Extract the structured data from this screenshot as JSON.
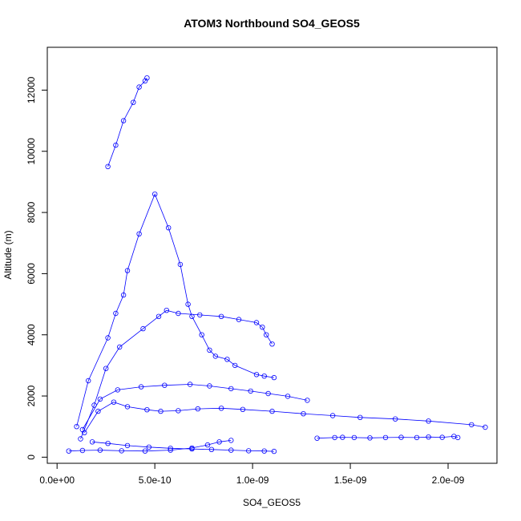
{
  "chart_data": {
    "type": "scatter",
    "title": "ATOM3 Northbound SO4_GEOS5",
    "xlabel": "SO4_GEOS5",
    "ylabel": "Altitude (m)",
    "xlim": [
      -5e-11,
      2.25e-09
    ],
    "ylim": [
      -200,
      13400
    ],
    "x_ticks": [
      0,
      5e-10,
      1e-09,
      1.5e-09,
      2e-09
    ],
    "x_tick_labels": [
      "0.0e+00",
      "5.0e-10",
      "1.0e-09",
      "1.5e-09",
      "2.0e-09"
    ],
    "y_ticks": [
      0,
      2000,
      4000,
      6000,
      8000,
      10000,
      12000
    ],
    "y_tick_labels": [
      "0",
      "2000",
      "4000",
      "6000",
      "8000",
      "10000",
      "12000"
    ],
    "grid": false,
    "legend": "none",
    "marker": "open-circle",
    "connected": true,
    "color": "#0000ff",
    "series": [
      {
        "x": [
          1e-10,
          1.6e-10,
          2.6e-10,
          3e-10,
          3.4e-10,
          3.6e-10,
          4.2e-10,
          5e-10,
          5.7e-10,
          6.3e-10,
          6.7e-10,
          6.9e-10,
          7.4e-10,
          7.8e-10,
          8.1e-10,
          8.7e-10,
          9.1e-10,
          1.02e-09,
          1.06e-09,
          1.11e-09
        ],
        "y": [
          1000,
          2500,
          3900,
          4700,
          5300,
          6100,
          7300,
          8600,
          7500,
          6300,
          5000,
          4600,
          4000,
          3500,
          3300,
          3200,
          3000,
          2700,
          2650,
          2600
        ]
      },
      {
        "x": [
          1.2e-10,
          1.9e-10,
          2.5e-10,
          3.2e-10,
          4.4e-10,
          5.2e-10,
          5.6e-10,
          6.2e-10,
          7.3e-10,
          8.4e-10,
          9.3e-10,
          1.02e-09,
          1.05e-09,
          1.07e-09,
          1.1e-09
        ],
        "y": [
          600,
          1700,
          2900,
          3600,
          4200,
          4600,
          4800,
          4700,
          4650,
          4600,
          4500,
          4400,
          4250,
          4000,
          3700
        ]
      },
      {
        "x": [
          1.4e-10,
          2.1e-10,
          2.9e-10,
          3.6e-10,
          4.6e-10,
          5.3e-10,
          6.2e-10,
          7.2e-10,
          8.4e-10,
          9.5e-10,
          1.1e-09,
          1.26e-09,
          1.41e-09,
          1.55e-09,
          1.73e-09,
          1.9e-09,
          2.12e-09,
          2.19e-09
        ],
        "y": [
          800,
          1500,
          1800,
          1650,
          1550,
          1500,
          1520,
          1580,
          1600,
          1560,
          1500,
          1420,
          1360,
          1300,
          1250,
          1180,
          1060,
          980
        ]
      },
      {
        "x": [
          1.3e-10,
          2.2e-10,
          3.1e-10,
          4.3e-10,
          5.5e-10,
          6.8e-10,
          7.8e-10,
          8.9e-10,
          9.9e-10,
          1.08e-09,
          1.18e-09,
          1.28e-09
        ],
        "y": [
          900,
          1900,
          2200,
          2300,
          2350,
          2380,
          2330,
          2240,
          2160,
          2080,
          1990,
          1860
        ]
      },
      {
        "x": [
          1.33e-09,
          1.42e-09,
          1.46e-09,
          1.52e-09,
          1.6e-09,
          1.68e-09,
          1.76e-09,
          1.84e-09,
          1.9e-09,
          1.97e-09,
          2.03e-09,
          2.05e-09
        ],
        "y": [
          620,
          640,
          650,
          640,
          630,
          640,
          650,
          640,
          660,
          650,
          680,
          640
        ]
      },
      {
        "x": [
          1.8e-10,
          2.6e-10,
          3.6e-10,
          4.7e-10,
          5.8e-10,
          6.9e-10,
          7.9e-10,
          8.9e-10,
          9.8e-10,
          1.06e-09,
          1.11e-09
        ],
        "y": [
          500,
          450,
          380,
          330,
          290,
          270,
          250,
          230,
          210,
          200,
          190
        ]
      },
      {
        "x": [
          6e-11,
          1.3e-10,
          2.2e-10,
          3.3e-10,
          4.5e-10,
          5.8e-10,
          6.9e-10,
          7.7e-10,
          8.3e-10,
          8.9e-10
        ],
        "y": [
          200,
          220,
          230,
          210,
          200,
          230,
          300,
          400,
          500,
          550
        ]
      },
      {
        "x": [
          2.6e-10,
          3e-10,
          3.4e-10,
          3.9e-10,
          4.2e-10,
          4.5e-10,
          4.6e-10
        ],
        "y": [
          9500,
          10200,
          11000,
          11600,
          12100,
          12300,
          12400
        ]
      }
    ]
  }
}
